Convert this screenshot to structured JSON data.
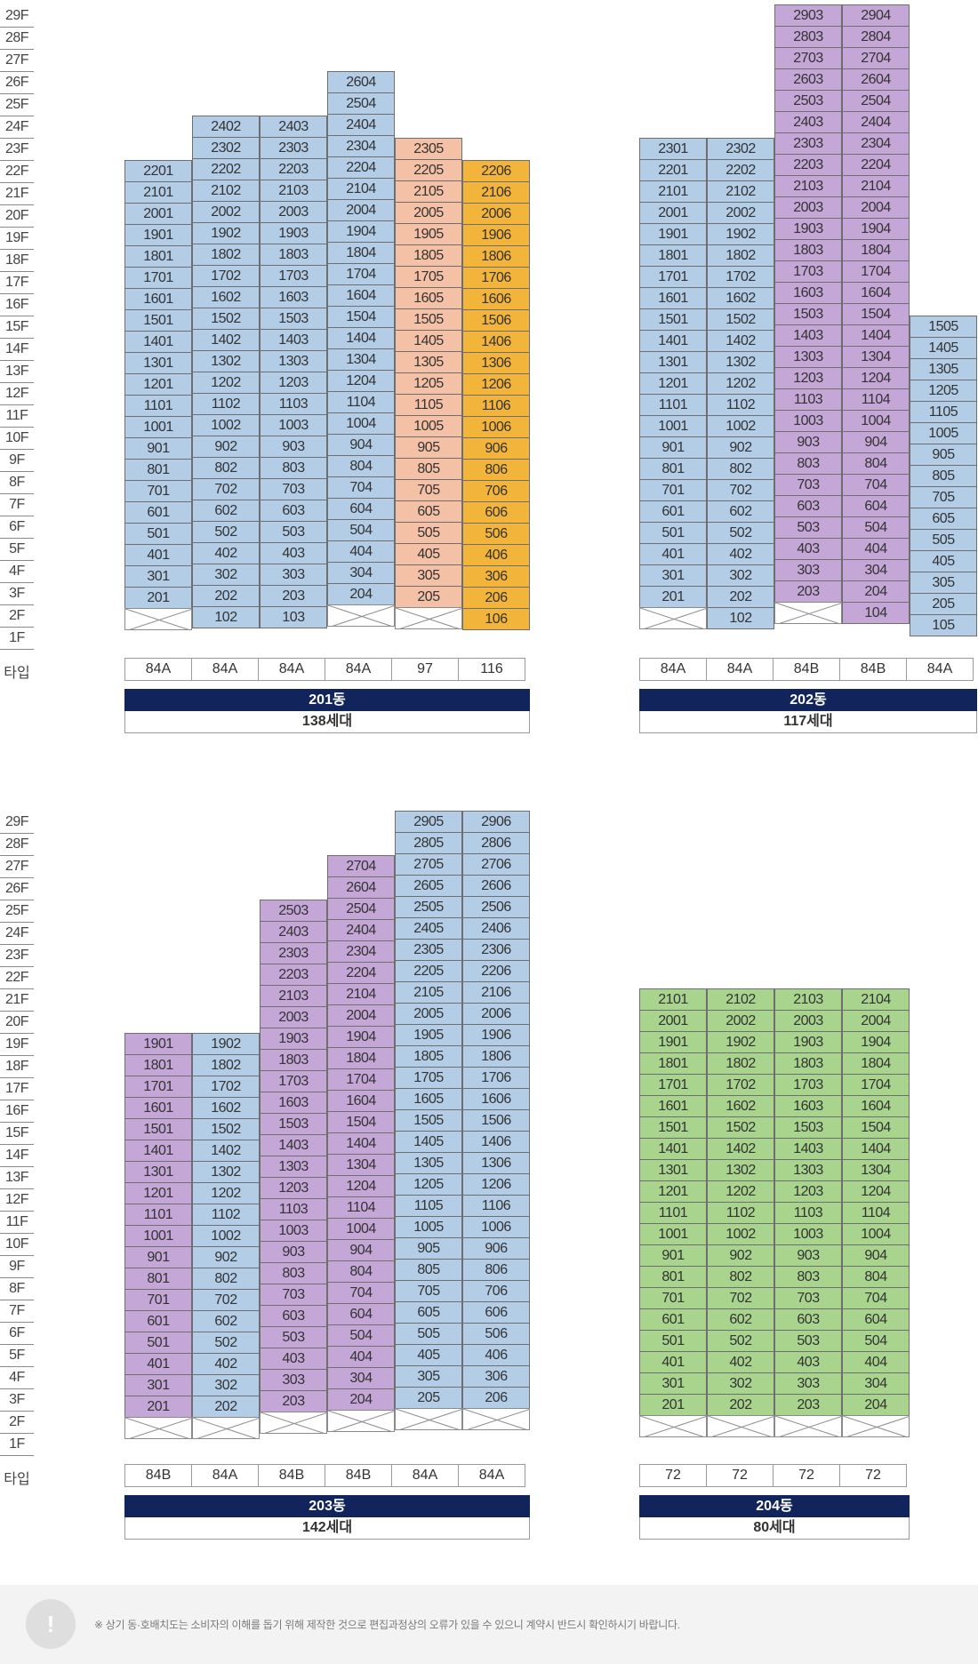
{
  "floor_labels": [
    "29F",
    "28F",
    "27F",
    "26F",
    "25F",
    "24F",
    "23F",
    "22F",
    "21F",
    "20F",
    "19F",
    "18F",
    "17F",
    "16F",
    "15F",
    "14F",
    "13F",
    "12F",
    "11F",
    "10F",
    "9F",
    "8F",
    "7F",
    "6F",
    "5F",
    "4F",
    "3F",
    "2F",
    "1F"
  ],
  "type_row_label": "타입",
  "colors": {
    "blue": "#b3cde6",
    "salmon": "#f5c1a6",
    "orange": "#f3b43c",
    "purple": "#c4a7d6",
    "green": "#a9d48e",
    "navy": "#12245c"
  },
  "buildings": [
    {
      "id": "201",
      "name": "201동",
      "households": "138세대",
      "columns": [
        {
          "line": "01",
          "type": "84A",
          "color": "blue",
          "top_floor": 22,
          "first_floor_unit": null
        },
        {
          "line": "02",
          "type": "84A",
          "color": "blue",
          "top_floor": 24,
          "first_floor_unit": "102"
        },
        {
          "line": "03",
          "type": "84A",
          "color": "blue",
          "top_floor": 24,
          "first_floor_unit": "103"
        },
        {
          "line": "04",
          "type": "84A",
          "color": "blue",
          "top_floor": 26,
          "first_floor_unit": null
        },
        {
          "line": "05",
          "type": "97",
          "color": "salmon",
          "top_floor": 23,
          "first_floor_unit": null
        },
        {
          "line": "06",
          "type": "116",
          "color": "orange",
          "top_floor": 22,
          "first_floor_unit": "106"
        }
      ]
    },
    {
      "id": "202",
      "name": "202동",
      "households": "117세대",
      "columns": [
        {
          "line": "01",
          "type": "84A",
          "color": "blue",
          "top_floor": 23,
          "first_floor_unit": null
        },
        {
          "line": "02",
          "type": "84A",
          "color": "blue",
          "top_floor": 23,
          "first_floor_unit": "102"
        },
        {
          "line": "03",
          "type": "84B",
          "color": "purple",
          "top_floor": 29,
          "first_floor_unit": null
        },
        {
          "line": "04",
          "type": "84B",
          "color": "purple",
          "top_floor": 29,
          "first_floor_unit": "104"
        },
        {
          "line": "05",
          "type": "84A",
          "color": "blue",
          "top_floor": 15,
          "first_floor_unit": "105"
        }
      ]
    },
    {
      "id": "203",
      "name": "203동",
      "households": "142세대",
      "columns": [
        {
          "line": "01",
          "type": "84B",
          "color": "purple",
          "top_floor": 19,
          "first_floor_unit": null
        },
        {
          "line": "02",
          "type": "84A",
          "color": "blue",
          "top_floor": 19,
          "first_floor_unit": null
        },
        {
          "line": "03",
          "type": "84B",
          "color": "purple",
          "top_floor": 25,
          "first_floor_unit": null
        },
        {
          "line": "04",
          "type": "84B",
          "color": "purple",
          "top_floor": 27,
          "first_floor_unit": null
        },
        {
          "line": "05",
          "type": "84A",
          "color": "blue",
          "top_floor": 29,
          "first_floor_unit": null
        },
        {
          "line": "06",
          "type": "84A",
          "color": "blue",
          "top_floor": 29,
          "first_floor_unit": null
        }
      ]
    },
    {
      "id": "204",
      "name": "204동",
      "households": "80세대",
      "columns": [
        {
          "line": "01",
          "type": "72",
          "color": "green",
          "top_floor": 21,
          "first_floor_unit": null
        },
        {
          "line": "02",
          "type": "72",
          "color": "green",
          "top_floor": 21,
          "first_floor_unit": null
        },
        {
          "line": "03",
          "type": "72",
          "color": "green",
          "top_floor": 21,
          "first_floor_unit": null
        },
        {
          "line": "04",
          "type": "72",
          "color": "green",
          "top_floor": 21,
          "first_floor_unit": null
        }
      ]
    }
  ],
  "footer": {
    "icon": "exclamation-icon",
    "icon_glyph": "!",
    "notice": "※ 상기 동·호배치도는 소비자의 이해를 돕기 위해 제작한 것으로 편집과정상의 오류가 있을 수 있으니 계약시 반드시 확인하시기 바랍니다."
  }
}
